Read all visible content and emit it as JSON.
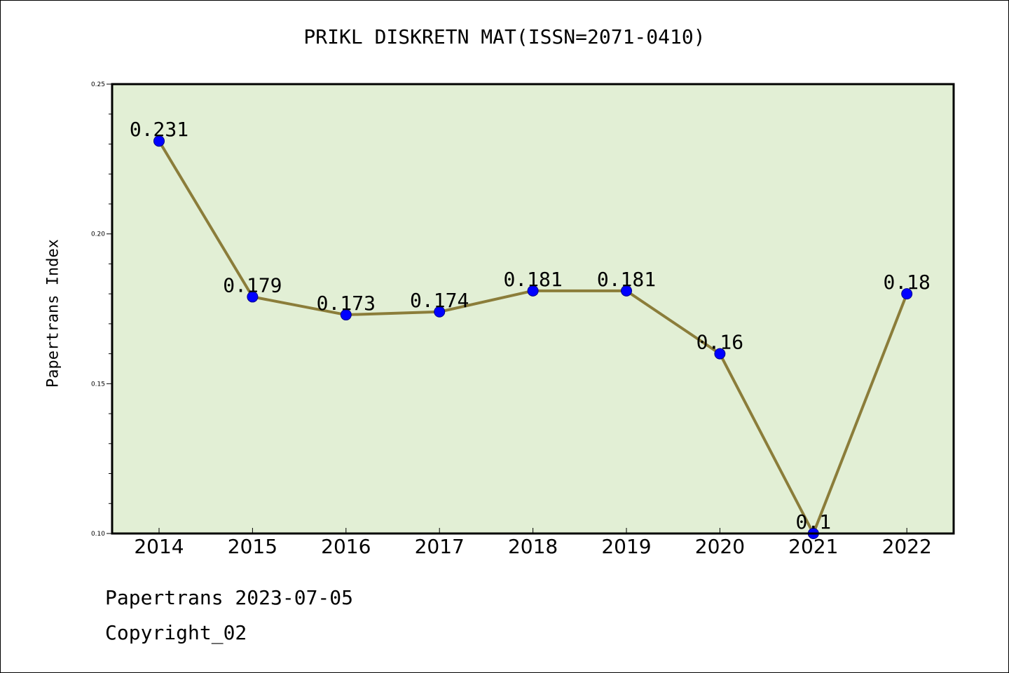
{
  "chart_data": {
    "type": "line",
    "title": "PRIKL DISKRETN MAT(ISSN=2071-0410)",
    "xlabel": "",
    "ylabel": "Papertrans Index",
    "categories": [
      "2014",
      "2015",
      "2016",
      "2017",
      "2018",
      "2019",
      "2020",
      "2021",
      "2022"
    ],
    "series": [
      {
        "values": [
          0.231,
          0.179,
          0.173,
          0.174,
          0.181,
          0.181,
          0.16,
          0.1,
          0.18
        ],
        "labels": [
          "0.231",
          "0.179",
          "0.173",
          "0.174",
          "0.181",
          "0.181",
          "0.16",
          "0.1",
          "0.18"
        ]
      }
    ],
    "ylim": [
      0.1,
      0.25
    ],
    "yticks": [
      "0.10",
      "0.15",
      "0.20",
      "0.25"
    ],
    "grid": false,
    "colors": {
      "plot_background": "#e2efd5",
      "line": "#8b7d3a",
      "marker": "#0000ff",
      "marker_edge": "#00008b",
      "axes": "#000000"
    }
  },
  "footer": {
    "line1": "Papertrans 2023-07-05",
    "line2": "Copyright_02"
  }
}
